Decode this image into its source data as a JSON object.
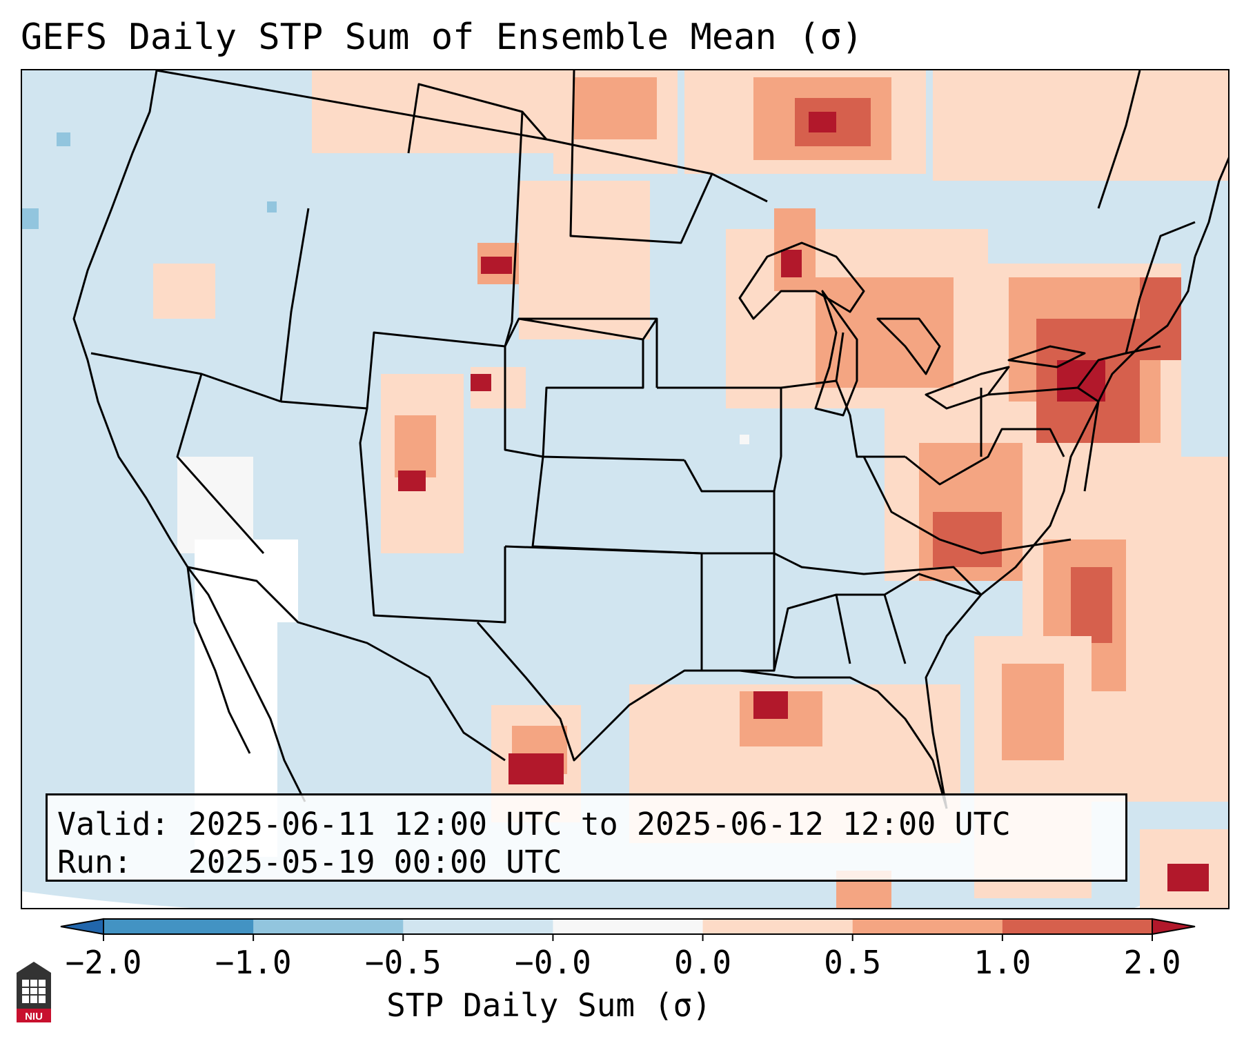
{
  "title": "GEFS Daily STP Sum of Ensemble Mean (σ)",
  "info": {
    "valid_label": "Valid:",
    "valid_value": "2025-06-11 12:00 UTC to 2025-06-12 12:00 UTC",
    "run_label": "Run:",
    "run_value": "2025-05-19 00:00 UTC"
  },
  "colorbar": {
    "label": "STP Daily Sum (σ)",
    "ticks": [
      "−2.0",
      "−1.0",
      "−0.5",
      "−0.0",
      "0.0",
      "0.5",
      "1.0",
      "2.0"
    ],
    "bins": [
      {
        "range": "< -2.0",
        "color": "#2166ac"
      },
      {
        "range": "-2.0 to -1.0",
        "color": "#4393c3"
      },
      {
        "range": "-1.0 to -0.5",
        "color": "#92c5de"
      },
      {
        "range": "-0.5 to -0.0",
        "color": "#d1e5f0"
      },
      {
        "range": "-0.0 to 0.0",
        "color": "#f7f7f7"
      },
      {
        "range": "0.0 to 0.5",
        "color": "#fddbc7"
      },
      {
        "range": "0.5 to 1.0",
        "color": "#f4a582"
      },
      {
        "range": "1.0 to 2.0",
        "color": "#d6604d"
      },
      {
        "range": "> 2.0",
        "color": "#b2182b"
      }
    ]
  },
  "logo": {
    "text": "NIU",
    "color": "#c8102e"
  },
  "map": {
    "background_color": "#d1e5f0",
    "land_lines": "state and coastline boundaries",
    "regions": [
      {
        "name": "northern-plains",
        "level": "0.0 to 0.5"
      },
      {
        "name": "north-dakota-canada",
        "level": "0.5 to 1.0"
      },
      {
        "name": "ontario",
        "level": "1.0 to 2.0"
      },
      {
        "name": "great-lakes",
        "level": "0.5 to 1.0"
      },
      {
        "name": "northeast",
        "level": "1.0 to 2.0"
      },
      {
        "name": "pennsylvania",
        "level": "1.0 to 2.0"
      },
      {
        "name": "mid-atlantic",
        "level": "0.5 to 1.0"
      },
      {
        "name": "atlantic-offshore",
        "level": "0.0 to 0.5"
      },
      {
        "name": "gulf-of-mexico",
        "level": "0.0 to 0.5"
      },
      {
        "name": "south-texas",
        "level": "> 2.0"
      },
      {
        "name": "california-coast",
        "level": "-0.0 to 0.0"
      }
    ]
  }
}
